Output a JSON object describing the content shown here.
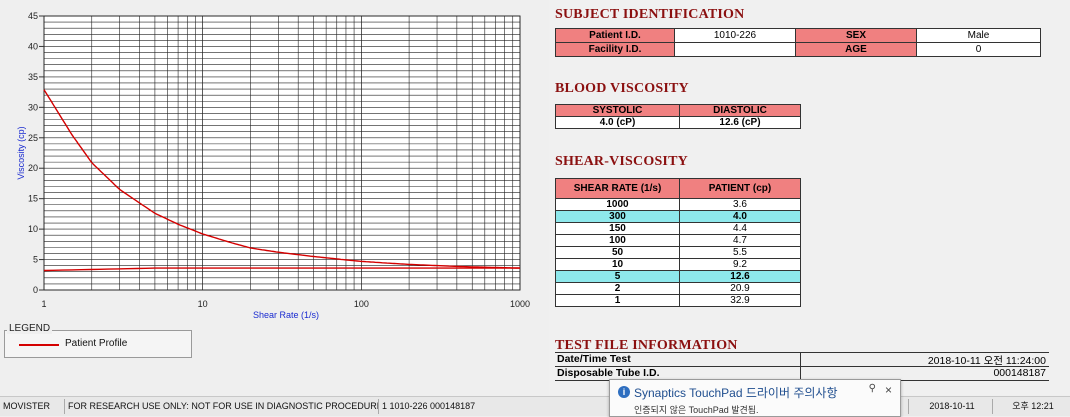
{
  "chart_data": {
    "type": "line",
    "xlabel": "Shear Rate (1/s)",
    "ylabel": "Viscosity (cp)",
    "xscale": "log",
    "xlim": [
      1,
      1000
    ],
    "ylim": [
      0,
      45
    ],
    "x_ticks": [
      "1",
      "10",
      "100",
      "1000"
    ],
    "y_ticks": [
      "0",
      "5",
      "10",
      "15",
      "20",
      "25",
      "30",
      "35",
      "40",
      "45"
    ],
    "grid": true,
    "series": [
      {
        "name": "Patient Profile",
        "color": "#d40000",
        "x": [
          1,
          1.5,
          2,
          3,
          5,
          7,
          10,
          15,
          20,
          30,
          50,
          70,
          100,
          150,
          200,
          300,
          500,
          700,
          1000
        ],
        "y": [
          32.9,
          25.5,
          20.9,
          16.5,
          12.6,
          10.8,
          9.2,
          7.8,
          6.9,
          6.2,
          5.5,
          5.1,
          4.7,
          4.4,
          4.2,
          4.0,
          3.8,
          3.7,
          3.6
        ]
      },
      {
        "color": "#d40000",
        "x": [
          1,
          5,
          1000
        ],
        "y": [
          3.2,
          3.6,
          3.6
        ]
      }
    ]
  },
  "legend": {
    "title": "LEGEND",
    "entry": "Patient Profile"
  },
  "subject": {
    "title": "SUBJECT IDENTIFICATION",
    "patient_id_label": "Patient I.D.",
    "patient_id": "1010-226",
    "sex_label": "SEX",
    "sex": "Male",
    "facility_id_label": "Facility I.D.",
    "facility_id": "",
    "age_label": "AGE",
    "age": "0"
  },
  "blood": {
    "title": "BLOOD VISCOSITY",
    "systolic_label": "SYSTOLIC",
    "diastolic_label": "DIASTOLIC",
    "systolic": "4.0 (cP)",
    "diastolic": "12.6 (cP)"
  },
  "shear": {
    "title": "SHEAR-VISCOSITY",
    "col_rate": "SHEAR RATE (1/s)",
    "col_patient": "PATIENT (cp)",
    "rows": [
      {
        "rate": "1000",
        "value": "3.6",
        "highlight": false
      },
      {
        "rate": "300",
        "value": "4.0",
        "highlight": true
      },
      {
        "rate": "150",
        "value": "4.4",
        "highlight": false
      },
      {
        "rate": "100",
        "value": "4.7",
        "highlight": false
      },
      {
        "rate": "50",
        "value": "5.5",
        "highlight": false
      },
      {
        "rate": "10",
        "value": "9.2",
        "highlight": false
      },
      {
        "rate": "5",
        "value": "12.6",
        "highlight": true
      },
      {
        "rate": "2",
        "value": "20.9",
        "highlight": false
      },
      {
        "rate": "1",
        "value": "32.9",
        "highlight": false
      }
    ]
  },
  "testfile": {
    "title": "TEST FILE INFORMATION",
    "datetime_label": "Date/Time Test",
    "datetime_value": "2018-10-11   오전 11:24:00",
    "tube_label": "Disposable Tube I.D.",
    "tube_value": "000148187"
  },
  "statusbar": {
    "app": "MOVISTER",
    "disclaimer": "FOR RESEARCH USE ONLY: NOT FOR USE IN DIAGNOSTIC PROCEDURES",
    "record": "1  1010-226  000148187",
    "date": "2018-10-11",
    "time": "오후 12:21"
  },
  "toast": {
    "title": "Synaptics TouchPad 드라이버 주의사항",
    "body": "인증되지 않은 TouchPad 발견됨."
  }
}
